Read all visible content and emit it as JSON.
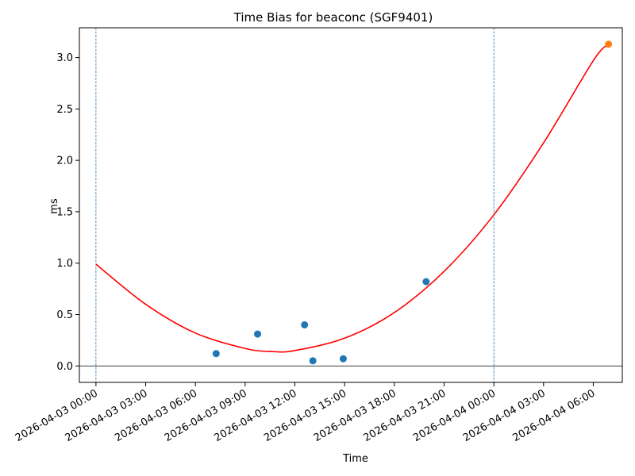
{
  "chart_data": {
    "type": "scatter",
    "title": "Time Bias for beaconc (SGF9401)",
    "xlabel": "Time",
    "ylabel": "ms",
    "x_type": "datetime",
    "xlim": [
      "2026-04-02 23:00",
      "2026-04-04 07:45"
    ],
    "ylim": [
      -0.16,
      3.29
    ],
    "x_ticks": [
      "2026-04-03 00:00",
      "2026-04-03 03:00",
      "2026-04-03 06:00",
      "2026-04-03 09:00",
      "2026-04-03 12:00",
      "2026-04-03 15:00",
      "2026-04-03 18:00",
      "2026-04-03 21:00",
      "2026-04-04 00:00",
      "2026-04-04 03:00",
      "2026-04-04 06:00"
    ],
    "y_ticks": [
      "0.0",
      "0.5",
      "1.0",
      "1.5",
      "2.0",
      "2.5",
      "3.0"
    ],
    "series": [
      {
        "type": "scatter",
        "color": "#1f77b4",
        "points": [
          {
            "x": "2026-04-03 07:15",
            "y": 0.12
          },
          {
            "x": "2026-04-03 09:45",
            "y": 0.31
          },
          {
            "x": "2026-04-03 12:35",
            "y": 0.4
          },
          {
            "x": "2026-04-03 13:05",
            "y": 0.05
          },
          {
            "x": "2026-04-03 14:55",
            "y": 0.07
          },
          {
            "x": "2026-04-03 19:55",
            "y": 0.82
          }
        ]
      },
      {
        "type": "scatter",
        "color": "#ff7f0e",
        "points": [
          {
            "x": "2026-04-04 06:55",
            "y": 3.13
          }
        ]
      },
      {
        "type": "line",
        "color": "#ff0000",
        "points": [
          {
            "x": "2026-04-03 00:00",
            "y": 0.99
          },
          {
            "x": "2026-04-03 03:00",
            "y": 0.6
          },
          {
            "x": "2026-04-03 06:00",
            "y": 0.32
          },
          {
            "x": "2026-04-03 09:00",
            "y": 0.17
          },
          {
            "x": "2026-04-03 10:40",
            "y": 0.14
          },
          {
            "x": "2026-04-03 12:00",
            "y": 0.15
          },
          {
            "x": "2026-04-03 15:00",
            "y": 0.27
          },
          {
            "x": "2026-04-03 18:00",
            "y": 0.52
          },
          {
            "x": "2026-04-03 21:00",
            "y": 0.92
          },
          {
            "x": "2026-04-04 00:00",
            "y": 1.47
          },
          {
            "x": "2026-04-04 03:00",
            "y": 2.17
          },
          {
            "x": "2026-04-04 06:00",
            "y": 2.97
          },
          {
            "x": "2026-04-04 06:55",
            "y": 3.13
          }
        ]
      }
    ],
    "vertical_lines": {
      "color": "#1f77b4",
      "style": "dashed",
      "x": [
        "2026-04-03 00:00",
        "2026-04-04 00:00"
      ]
    },
    "horizontal_lines": {
      "color": "#000000",
      "style": "solid",
      "y": [
        0
      ]
    },
    "grid": false,
    "legend": "none"
  }
}
